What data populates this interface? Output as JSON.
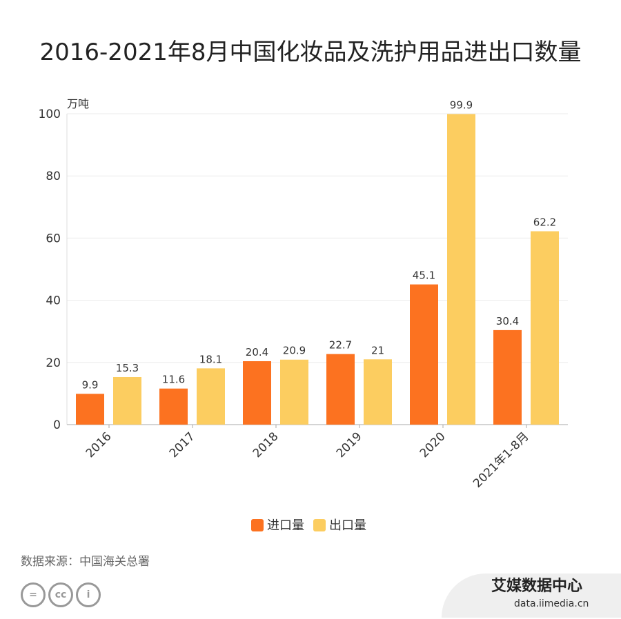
{
  "title": "2016-2021年8月中国化妆品及洗护用品进出口数量",
  "source": "数据来源：中国海关总署",
  "logo": {
    "name": "艾媒数据中心",
    "url": "data.iimedia.cn"
  },
  "license_icons": [
    "cc-nd-icon",
    "cc-icon",
    "cc-by-icon"
  ],
  "chart_data": {
    "type": "bar",
    "title": "2016-2021年8月中国化妆品及洗护用品进出口数量",
    "ylabel": "万吨",
    "ylim": [
      0,
      100
    ],
    "yticks": [
      0,
      20,
      40,
      60,
      80,
      100
    ],
    "grid": true,
    "legend": "bottom",
    "categories": [
      "2016",
      "2017",
      "2018",
      "2019",
      "2020",
      "2021年1-8月"
    ],
    "series": [
      {
        "name": "进口量",
        "color": "#FC7220",
        "values": [
          9.9,
          11.6,
          20.4,
          22.7,
          45.1,
          30.4
        ]
      },
      {
        "name": "出口量",
        "color": "#FCCD60",
        "values": [
          15.3,
          18.1,
          20.9,
          21,
          99.9,
          62.2
        ]
      }
    ]
  }
}
